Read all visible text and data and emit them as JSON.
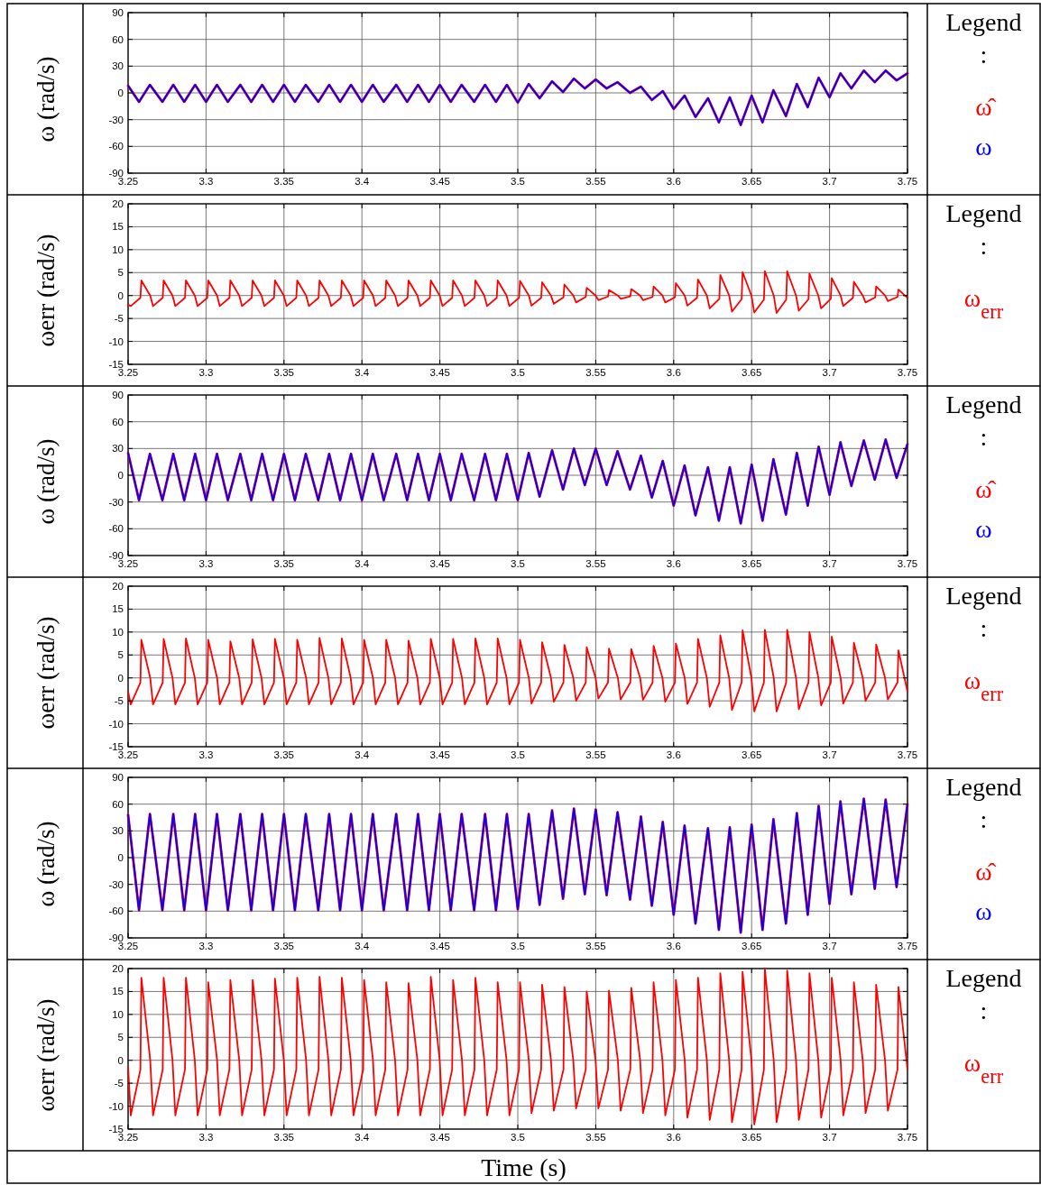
{
  "chart_data": [
    {
      "type": "line",
      "ylabel": "ω (rad/s)",
      "legend_title": "Legend :",
      "legend": "right",
      "grid": true,
      "xlim": [
        3.25,
        3.75
      ],
      "xticks": [
        3.25,
        3.3,
        3.35,
        3.4,
        3.45,
        3.5,
        3.55,
        3.6,
        3.65,
        3.7,
        3.75
      ],
      "ylim": [
        -90,
        90
      ],
      "yticks": [
        -90,
        -60,
        -30,
        0,
        30,
        60,
        90
      ],
      "x": [
        3.25,
        3.257,
        3.264,
        3.272,
        3.279,
        3.286,
        3.293,
        3.3,
        3.307,
        3.314,
        3.322,
        3.329,
        3.336,
        3.343,
        3.35,
        3.357,
        3.364,
        3.372,
        3.379,
        3.386,
        3.393,
        3.4,
        3.407,
        3.414,
        3.422,
        3.429,
        3.436,
        3.443,
        3.45,
        3.457,
        3.464,
        3.472,
        3.479,
        3.486,
        3.493,
        3.5,
        3.507,
        3.514,
        3.522,
        3.529,
        3.536,
        3.543,
        3.55,
        3.557,
        3.564,
        3.572,
        3.579,
        3.586,
        3.593,
        3.6,
        3.607,
        3.614,
        3.622,
        3.629,
        3.636,
        3.643,
        3.65,
        3.657,
        3.664,
        3.672,
        3.679,
        3.686,
        3.693,
        3.7,
        3.707,
        3.714,
        3.722,
        3.729,
        3.736,
        3.743,
        3.75
      ],
      "series": [
        {
          "name": "ω̂",
          "color": "#ff0000",
          "values": [
            8,
            -10,
            9,
            -10,
            9,
            -10,
            9,
            -10,
            9,
            -10,
            9,
            -10,
            9,
            -10,
            9,
            -10,
            9,
            -10,
            9,
            -10,
            9,
            -10,
            9,
            -10,
            9,
            -10,
            9,
            -10,
            9,
            -10,
            9,
            -10,
            9,
            -10,
            9,
            -11,
            10,
            -6,
            13,
            1,
            16,
            5,
            15,
            5,
            12,
            0,
            7,
            -8,
            2,
            -18,
            -3,
            -27,
            -6,
            -33,
            -5,
            -36,
            -3,
            -33,
            3,
            -26,
            10,
            -16,
            17,
            -5,
            22,
            5,
            25,
            12,
            25,
            14,
            22
          ]
        },
        {
          "name": "ω",
          "color": "#0000ff",
          "values": [
            8,
            -10,
            9,
            -10,
            9,
            -10,
            9,
            -10,
            9,
            -10,
            9,
            -10,
            9,
            -10,
            9,
            -10,
            9,
            -10,
            9,
            -10,
            9,
            -10,
            9,
            -10,
            9,
            -10,
            9,
            -10,
            9,
            -10,
            9,
            -10,
            9,
            -10,
            9,
            -11,
            10,
            -6,
            13,
            1,
            16,
            5,
            15,
            5,
            12,
            0,
            7,
            -8,
            2,
            -18,
            -3,
            -27,
            -6,
            -33,
            -5,
            -36,
            -3,
            -33,
            3,
            -26,
            10,
            -16,
            17,
            -5,
            22,
            5,
            25,
            12,
            25,
            14,
            22
          ]
        }
      ]
    },
    {
      "type": "line",
      "ylabel": "ωerr (rad/s)",
      "legend_title": "Legend :",
      "legend": "right",
      "grid": true,
      "xlim": [
        3.25,
        3.75
      ],
      "xticks": [
        3.25,
        3.3,
        3.35,
        3.4,
        3.45,
        3.5,
        3.55,
        3.6,
        3.65,
        3.7,
        3.75
      ],
      "ylim": [
        -15,
        20
      ],
      "yticks": [
        -15,
        -10,
        -5,
        0,
        5,
        10,
        15,
        20
      ],
      "x": [
        3.25,
        3.2517,
        3.2579,
        3.2585,
        3.2642,
        3.266,
        3.2722,
        3.2728,
        3.2785,
        3.2803,
        3.2865,
        3.2871,
        3.2928,
        3.2946,
        3.3008,
        3.3014,
        3.3071,
        3.3088,
        3.315,
        3.3156,
        3.3213,
        3.3231,
        3.3293,
        3.3299,
        3.3356,
        3.3374,
        3.3436,
        3.3442,
        3.3499,
        3.3517,
        3.3579,
        3.3585,
        3.3642,
        3.366,
        3.3722,
        3.3728,
        3.3785,
        3.3803,
        3.3865,
        3.3871,
        3.3928,
        3.3946,
        3.4008,
        3.4014,
        3.4071,
        3.4088,
        3.415,
        3.4156,
        3.4213,
        3.4231,
        3.4293,
        3.4299,
        3.4356,
        3.4374,
        3.4436,
        3.4442,
        3.4499,
        3.4517,
        3.4579,
        3.4585,
        3.4642,
        3.466,
        3.4722,
        3.4728,
        3.4785,
        3.4803,
        3.4865,
        3.4871,
        3.4928,
        3.4946,
        3.5008,
        3.5014,
        3.5071,
        3.5088,
        3.515,
        3.5156,
        3.5213,
        3.5231,
        3.5293,
        3.5299,
        3.5356,
        3.5374,
        3.5436,
        3.5442,
        3.5499,
        3.5517,
        3.5579,
        3.5585,
        3.5642,
        3.566,
        3.5722,
        3.5728,
        3.5785,
        3.5803,
        3.5865,
        3.5871,
        3.5928,
        3.5946,
        3.6008,
        3.6014,
        3.6071,
        3.6088,
        3.615,
        3.6156,
        3.6213,
        3.6231,
        3.6293,
        3.6299,
        3.6356,
        3.6374,
        3.6436,
        3.6442,
        3.6499,
        3.6517,
        3.6579,
        3.6585,
        3.6642,
        3.666,
        3.6722,
        3.6728,
        3.6785,
        3.6803,
        3.6865,
        3.6871,
        3.6928,
        3.6946,
        3.7008,
        3.7014,
        3.7071,
        3.7088,
        3.715,
        3.7156,
        3.7213,
        3.7231,
        3.7293,
        3.7299,
        3.7356,
        3.7374,
        3.7436,
        3.7442,
        3.75
      ],
      "series": [
        {
          "name": "ω$_{err}$",
          "color": "#ff0000",
          "values": [
            -2,
            -2.3,
            -0.5,
            3.3,
            0,
            -2.3,
            -0.5,
            3.3,
            0,
            -2.3,
            -0.5,
            3.3,
            0,
            -2.3,
            -0.5,
            3.3,
            0,
            -2.3,
            -0.5,
            3.3,
            0,
            -2.3,
            -0.5,
            3.3,
            0,
            -2.3,
            -0.5,
            3.3,
            0,
            -2.3,
            -0.5,
            3.3,
            0,
            -2.3,
            -0.5,
            3.3,
            0,
            -2.3,
            -0.5,
            3.3,
            0,
            -2.3,
            -0.5,
            3.3,
            0,
            -2.3,
            -0.5,
            3.3,
            0,
            -2.3,
            -0.5,
            3.3,
            0,
            -2.3,
            -0.5,
            3.3,
            0,
            -2.3,
            -0.5,
            3.3,
            0,
            -2.3,
            -0.5,
            3.3,
            0,
            -2.3,
            -0.5,
            3.3,
            0,
            -2.3,
            -0.5,
            3.2,
            0,
            -2.2,
            -0.5,
            2.9,
            0,
            -1.8,
            -0.4,
            2.4,
            0,
            -1.5,
            -0.3,
            1.7,
            0,
            -1,
            -0.2,
            1.2,
            0,
            -0.7,
            -0.2,
            1.4,
            0,
            -1,
            -0.3,
            2,
            0,
            -1.5,
            -0.4,
            2.7,
            0,
            -2.2,
            -0.5,
            3.5,
            0,
            -2.8,
            -0.7,
            4.5,
            0,
            -3.5,
            -0.8,
            5.1,
            0,
            -3.7,
            -0.9,
            5.3,
            0,
            -3.8,
            -0.9,
            5.3,
            0,
            -3.3,
            -0.8,
            4.8,
            0,
            -2.8,
            -0.7,
            3.8,
            0,
            -2.3,
            -0.5,
            3,
            0,
            -1.5,
            -0.4,
            2,
            0,
            -1.2,
            -0.3,
            1.3,
            -0.5
          ]
        }
      ]
    },
    {
      "type": "line",
      "ylabel": "ω (rad/s)",
      "legend_title": "Legend :",
      "legend": "right",
      "grid": true,
      "xlim": [
        3.25,
        3.75
      ],
      "xticks": [
        3.25,
        3.3,
        3.35,
        3.4,
        3.45,
        3.5,
        3.55,
        3.6,
        3.65,
        3.7,
        3.75
      ],
      "ylim": [
        -90,
        90
      ],
      "yticks": [
        -90,
        -60,
        -30,
        0,
        30,
        60,
        90
      ],
      "x": [
        3.25,
        3.257,
        3.264,
        3.272,
        3.279,
        3.286,
        3.293,
        3.3,
        3.307,
        3.314,
        3.322,
        3.329,
        3.336,
        3.343,
        3.35,
        3.357,
        3.364,
        3.372,
        3.379,
        3.386,
        3.393,
        3.4,
        3.407,
        3.414,
        3.422,
        3.429,
        3.436,
        3.443,
        3.45,
        3.457,
        3.464,
        3.472,
        3.479,
        3.486,
        3.493,
        3.5,
        3.507,
        3.514,
        3.522,
        3.529,
        3.536,
        3.543,
        3.55,
        3.557,
        3.564,
        3.572,
        3.579,
        3.586,
        3.593,
        3.6,
        3.607,
        3.614,
        3.622,
        3.629,
        3.636,
        3.643,
        3.65,
        3.657,
        3.664,
        3.672,
        3.679,
        3.686,
        3.693,
        3.7,
        3.707,
        3.714,
        3.722,
        3.729,
        3.736,
        3.743,
        3.75
      ],
      "series": [
        {
          "name": "ω̂",
          "color": "#ff0000",
          "values": [
            25,
            -28,
            24,
            -28,
            24,
            -28,
            24,
            -28,
            24,
            -28,
            24,
            -28,
            24,
            -28,
            24,
            -28,
            24,
            -28,
            24,
            -28,
            24,
            -28,
            24,
            -28,
            24,
            -28,
            24,
            -28,
            24,
            -28,
            24,
            -28,
            24,
            -28,
            24,
            -28,
            25,
            -24,
            28,
            -16,
            30,
            -11,
            30,
            -11,
            27,
            -16,
            22,
            -25,
            16,
            -34,
            11,
            -45,
            9,
            -51,
            9,
            -54,
            12,
            -51,
            18,
            -44,
            25,
            -34,
            32,
            -22,
            37,
            -12,
            39,
            -5,
            40,
            -3,
            35
          ]
        },
        {
          "name": "ω",
          "color": "#0000ff",
          "values": [
            25,
            -28,
            24,
            -28,
            24,
            -28,
            24,
            -28,
            24,
            -28,
            24,
            -28,
            24,
            -28,
            24,
            -28,
            24,
            -28,
            24,
            -28,
            24,
            -28,
            24,
            -28,
            24,
            -28,
            24,
            -28,
            24,
            -28,
            24,
            -28,
            24,
            -28,
            24,
            -28,
            25,
            -24,
            28,
            -16,
            30,
            -11,
            30,
            -11,
            27,
            -16,
            22,
            -25,
            16,
            -34,
            11,
            -45,
            9,
            -51,
            9,
            -54,
            12,
            -51,
            18,
            -44,
            25,
            -34,
            32,
            -22,
            37,
            -12,
            39,
            -5,
            40,
            -3,
            35
          ]
        }
      ]
    },
    {
      "type": "line",
      "ylabel": "ωerr (rad/s)",
      "legend_title": "Legend :",
      "legend": "right",
      "grid": true,
      "xlim": [
        3.25,
        3.75
      ],
      "xticks": [
        3.25,
        3.3,
        3.35,
        3.4,
        3.45,
        3.5,
        3.55,
        3.6,
        3.65,
        3.7,
        3.75
      ],
      "ylim": [
        -15,
        20
      ],
      "yticks": [
        -15,
        -10,
        -5,
        0,
        5,
        10,
        15,
        20
      ],
      "x": [
        3.25,
        3.2517,
        3.2579,
        3.2585,
        3.2642,
        3.266,
        3.2722,
        3.2728,
        3.2785,
        3.2803,
        3.2865,
        3.2871,
        3.2928,
        3.2946,
        3.3008,
        3.3014,
        3.3071,
        3.3088,
        3.315,
        3.3156,
        3.3213,
        3.3231,
        3.3293,
        3.3299,
        3.3356,
        3.3374,
        3.3436,
        3.3442,
        3.3499,
        3.3517,
        3.3579,
        3.3585,
        3.3642,
        3.366,
        3.3722,
        3.3728,
        3.3785,
        3.3803,
        3.3865,
        3.3871,
        3.3928,
        3.3946,
        3.4008,
        3.4014,
        3.4071,
        3.4088,
        3.415,
        3.4156,
        3.4213,
        3.4231,
        3.4293,
        3.4299,
        3.4356,
        3.4374,
        3.4436,
        3.4442,
        3.4499,
        3.4517,
        3.4579,
        3.4585,
        3.4642,
        3.466,
        3.4722,
        3.4728,
        3.4785,
        3.4803,
        3.4865,
        3.4871,
        3.4928,
        3.4946,
        3.5008,
        3.5014,
        3.5071,
        3.5088,
        3.515,
        3.5156,
        3.5213,
        3.5231,
        3.5293,
        3.5299,
        3.5356,
        3.5374,
        3.5436,
        3.5442,
        3.5499,
        3.5517,
        3.5579,
        3.5585,
        3.5642,
        3.566,
        3.5722,
        3.5728,
        3.5785,
        3.5803,
        3.5865,
        3.5871,
        3.5928,
        3.5946,
        3.6008,
        3.6014,
        3.6071,
        3.6088,
        3.615,
        3.6156,
        3.6213,
        3.6231,
        3.6293,
        3.6299,
        3.6356,
        3.6374,
        3.6436,
        3.6442,
        3.6499,
        3.6517,
        3.6579,
        3.6585,
        3.6642,
        3.666,
        3.6722,
        3.6728,
        3.6785,
        3.6803,
        3.6865,
        3.6871,
        3.6928,
        3.6946,
        3.7008,
        3.7014,
        3.7071,
        3.7088,
        3.715,
        3.7156,
        3.7213,
        3.7231,
        3.7293,
        3.7299,
        3.7356,
        3.7374,
        3.7436,
        3.7442,
        3.75
      ],
      "series": [
        {
          "name": "ω$_{err}$",
          "color": "#ff0000",
          "values": [
            -3,
            -5.8,
            -1,
            8.3,
            0,
            -5.8,
            -1,
            8.5,
            0,
            -5.8,
            -1,
            8.6,
            0,
            -5.8,
            -1,
            8.3,
            0,
            -5.8,
            -1,
            8,
            0,
            -5.8,
            -1,
            8.4,
            0,
            -5.8,
            -1,
            8.5,
            0,
            -5.8,
            -1,
            8.3,
            0,
            -5.8,
            -1,
            8.7,
            0,
            -5.8,
            -1,
            8.6,
            0,
            -5.8,
            -1,
            8.3,
            0,
            -5.8,
            -1,
            8.3,
            0,
            -5.8,
            -1,
            8.1,
            0,
            -5.8,
            -1,
            8.5,
            0,
            -5.8,
            -1,
            8.5,
            0,
            -5.8,
            -1,
            8.6,
            0,
            -5.8,
            -1,
            8.6,
            0,
            -5.8,
            -1,
            8.3,
            0,
            -5.6,
            -1,
            7.8,
            0,
            -5.2,
            -1,
            7.2,
            0,
            -5,
            -1,
            6.7,
            0,
            -4.5,
            -1,
            6.4,
            0,
            -4.7,
            -1,
            6.3,
            0,
            -4.8,
            -1,
            7,
            0,
            -5.2,
            -1,
            7.5,
            0,
            -5.7,
            -1,
            8.5,
            0,
            -6.3,
            -1,
            9.3,
            0,
            -7,
            -1,
            10.4,
            0,
            -7.3,
            -1,
            10.5,
            0,
            -7.3,
            -1,
            10.5,
            0,
            -6.8,
            -1,
            10,
            0,
            -6,
            -1,
            9,
            0,
            -5.6,
            -1,
            7.7,
            0,
            -5,
            -1,
            7.3,
            0,
            -4.7,
            -1,
            6,
            -3
          ]
        }
      ]
    },
    {
      "type": "line",
      "ylabel": "ω (rad/s)",
      "legend_title": "Legend :",
      "legend": "right",
      "grid": true,
      "xlim": [
        3.25,
        3.75
      ],
      "xticks": [
        3.25,
        3.3,
        3.35,
        3.4,
        3.45,
        3.5,
        3.55,
        3.6,
        3.65,
        3.7,
        3.75
      ],
      "ylim": [
        -90,
        90
      ],
      "yticks": [
        -90,
        -60,
        -30,
        0,
        30,
        60,
        90
      ],
      "x": [
        3.25,
        3.257,
        3.264,
        3.272,
        3.279,
        3.286,
        3.293,
        3.3,
        3.307,
        3.314,
        3.322,
        3.329,
        3.336,
        3.343,
        3.35,
        3.357,
        3.364,
        3.372,
        3.379,
        3.386,
        3.393,
        3.4,
        3.407,
        3.414,
        3.422,
        3.429,
        3.436,
        3.443,
        3.45,
        3.457,
        3.464,
        3.472,
        3.479,
        3.486,
        3.493,
        3.5,
        3.507,
        3.514,
        3.522,
        3.529,
        3.536,
        3.543,
        3.55,
        3.557,
        3.564,
        3.572,
        3.579,
        3.586,
        3.593,
        3.6,
        3.607,
        3.614,
        3.622,
        3.629,
        3.636,
        3.643,
        3.65,
        3.657,
        3.664,
        3.672,
        3.679,
        3.686,
        3.693,
        3.7,
        3.707,
        3.714,
        3.722,
        3.729,
        3.736,
        3.743,
        3.75
      ],
      "series": [
        {
          "name": "ω̂",
          "color": "#ff0000",
          "values": [
            48,
            -59,
            49,
            -59,
            49,
            -59,
            49,
            -59,
            49,
            -59,
            49,
            -59,
            49,
            -59,
            49,
            -59,
            49,
            -59,
            49,
            -59,
            49,
            -59,
            49,
            -59,
            49,
            -59,
            49,
            -59,
            49,
            -59,
            49,
            -59,
            49,
            -59,
            49,
            -58,
            49,
            -53,
            53,
            -46,
            55,
            -41,
            54,
            -42,
            51,
            -47,
            46,
            -54,
            40,
            -64,
            36,
            -74,
            33,
            -81,
            34,
            -84,
            37,
            -81,
            43,
            -74,
            50,
            -64,
            58,
            -52,
            63,
            -41,
            66,
            -35,
            65,
            -33,
            60
          ]
        },
        {
          "name": "ω",
          "color": "#0000ff",
          "values": [
            48,
            -59,
            49,
            -59,
            49,
            -59,
            49,
            -59,
            49,
            -59,
            49,
            -59,
            49,
            -59,
            49,
            -59,
            49,
            -59,
            49,
            -59,
            49,
            -59,
            49,
            -59,
            49,
            -59,
            49,
            -59,
            49,
            -59,
            49,
            -59,
            49,
            -59,
            49,
            -58,
            49,
            -53,
            53,
            -46,
            55,
            -41,
            54,
            -42,
            51,
            -47,
            46,
            -54,
            40,
            -64,
            36,
            -74,
            33,
            -81,
            34,
            -84,
            37,
            -81,
            43,
            -74,
            50,
            -64,
            58,
            -52,
            63,
            -41,
            66,
            -35,
            65,
            -33,
            60
          ]
        }
      ]
    },
    {
      "type": "line",
      "ylabel": "ωerr (rad/s)",
      "xlabel": "Time (s)",
      "legend_title": "Legend :",
      "legend": "right",
      "grid": true,
      "xlim": [
        3.25,
        3.75
      ],
      "xticks": [
        3.25,
        3.3,
        3.35,
        3.4,
        3.45,
        3.5,
        3.55,
        3.6,
        3.65,
        3.7,
        3.75
      ],
      "ylim": [
        -15,
        20
      ],
      "yticks": [
        -15,
        -10,
        -5,
        0,
        5,
        10,
        15,
        20
      ],
      "x": [
        3.25,
        3.2517,
        3.2579,
        3.2585,
        3.2642,
        3.266,
        3.2722,
        3.2728,
        3.2785,
        3.2803,
        3.2865,
        3.2871,
        3.2928,
        3.2946,
        3.3008,
        3.3014,
        3.3071,
        3.3088,
        3.315,
        3.3156,
        3.3213,
        3.3231,
        3.3293,
        3.3299,
        3.3356,
        3.3374,
        3.3436,
        3.3442,
        3.3499,
        3.3517,
        3.3579,
        3.3585,
        3.3642,
        3.366,
        3.3722,
        3.3728,
        3.3785,
        3.3803,
        3.3865,
        3.3871,
        3.3928,
        3.3946,
        3.4008,
        3.4014,
        3.4071,
        3.4088,
        3.415,
        3.4156,
        3.4213,
        3.4231,
        3.4293,
        3.4299,
        3.4356,
        3.4374,
        3.4436,
        3.4442,
        3.4499,
        3.4517,
        3.4579,
        3.4585,
        3.4642,
        3.466,
        3.4722,
        3.4728,
        3.4785,
        3.4803,
        3.4865,
        3.4871,
        3.4928,
        3.4946,
        3.5008,
        3.5014,
        3.5071,
        3.5088,
        3.515,
        3.5156,
        3.5213,
        3.5231,
        3.5293,
        3.5299,
        3.5356,
        3.5374,
        3.5436,
        3.5442,
        3.5499,
        3.5517,
        3.5579,
        3.5585,
        3.5642,
        3.566,
        3.5722,
        3.5728,
        3.5785,
        3.5803,
        3.5865,
        3.5871,
        3.5928,
        3.5946,
        3.6008,
        3.6014,
        3.6071,
        3.6088,
        3.615,
        3.6156,
        3.6213,
        3.6231,
        3.6293,
        3.6299,
        3.6356,
        3.6374,
        3.6436,
        3.6442,
        3.6499,
        3.6517,
        3.6579,
        3.6585,
        3.6642,
        3.666,
        3.6722,
        3.6728,
        3.6785,
        3.6803,
        3.6865,
        3.6871,
        3.6928,
        3.6946,
        3.7008,
        3.7014,
        3.7071,
        3.7088,
        3.715,
        3.7156,
        3.7213,
        3.7231,
        3.7293,
        3.7299,
        3.7356,
        3.7374,
        3.7436,
        3.7442,
        3.75
      ],
      "series": [
        {
          "name": "ω$_{err}$",
          "color": "#ff0000",
          "values": [
            -1.5,
            -12,
            -2,
            18,
            0,
            -12,
            -2,
            18,
            0,
            -12,
            -2,
            18,
            0,
            -12,
            -2,
            17,
            0,
            -12,
            -2,
            17.5,
            0,
            -12,
            -2,
            17.5,
            0,
            -12,
            -2,
            17.8,
            0,
            -12,
            -2,
            18,
            0,
            -12,
            -2,
            18.2,
            0,
            -12,
            -2,
            18,
            0,
            -12,
            -2,
            17.5,
            0,
            -12,
            -2,
            17,
            0,
            -12,
            -2,
            16.8,
            0,
            -12,
            -2,
            18.2,
            0,
            -12,
            -2,
            17.5,
            0,
            -12,
            -2,
            18,
            0,
            -12,
            -2,
            17,
            0,
            -12,
            -2,
            17,
            0,
            -11.5,
            -2,
            16.5,
            0,
            -11,
            -2,
            16,
            0,
            -10.5,
            -2,
            15,
            0,
            -10.5,
            -2,
            15.2,
            0,
            -11,
            -2,
            15.8,
            0,
            -11.5,
            -2,
            17,
            0,
            -12,
            -2,
            17.5,
            0,
            -12.5,
            -2,
            18,
            0,
            -13,
            -2,
            19,
            0,
            -13.5,
            -2,
            19.3,
            0,
            -14,
            -2,
            20,
            0,
            -13.5,
            -2,
            19.6,
            0,
            -13,
            -2,
            19,
            0,
            -12.5,
            -2,
            18,
            0,
            -12,
            -2,
            17,
            0,
            -11.5,
            -2,
            16.5,
            0,
            -11,
            -2,
            16,
            -2
          ]
        }
      ]
    }
  ]
}
